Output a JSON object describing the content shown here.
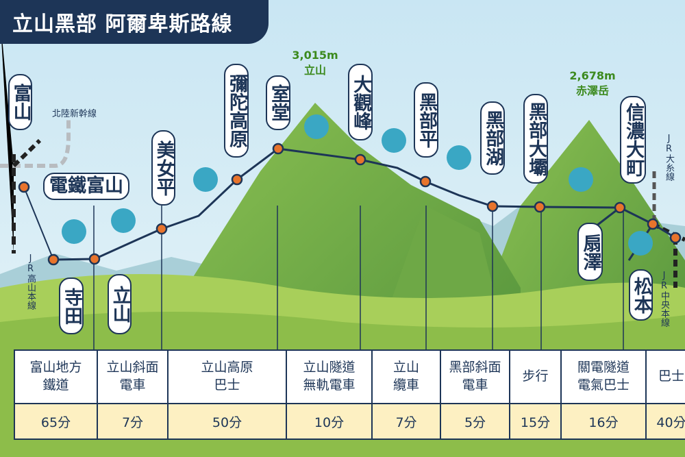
{
  "header": {
    "title": "立山黑部 阿爾卑斯路線"
  },
  "peaks": [
    {
      "height": "3,015m",
      "name": "立山"
    },
    {
      "height": "2,678m",
      "name": "赤澤岳"
    }
  ],
  "rail_lines": [
    "北陸新幹線",
    "JR高山本線",
    "JR大糸線",
    "JR中央本線"
  ],
  "stations": [
    "富山",
    "電鐵富山",
    "寺田",
    "立山",
    "美女平",
    "彌陀高原",
    "室堂",
    "大觀峰",
    "黑部平",
    "黑部湖",
    "黑部大壩",
    "扇澤",
    "信濃大町",
    "松本"
  ],
  "table": {
    "columns": [
      {
        "name": [
          "富山地方",
          "鐵道"
        ],
        "duration": "65分"
      },
      {
        "name": [
          "立山斜面",
          "電車"
        ],
        "duration": "7分"
      },
      {
        "name": [
          "立山高原",
          "巴士"
        ],
        "duration": "50分"
      },
      {
        "name": [
          "立山隧道",
          "無軌電車"
        ],
        "duration": "10分"
      },
      {
        "name": [
          "立山",
          "纜車"
        ],
        "duration": "7分"
      },
      {
        "name": [
          "黑部斜面",
          "電車"
        ],
        "duration": "5分"
      },
      {
        "name": [
          "步行"
        ],
        "duration": "15分"
      },
      {
        "name": [
          "關電隧道",
          "電氣巴士"
        ],
        "duration": "16分"
      },
      {
        "name": [
          "巴士"
        ],
        "duration": "40分"
      }
    ]
  }
}
